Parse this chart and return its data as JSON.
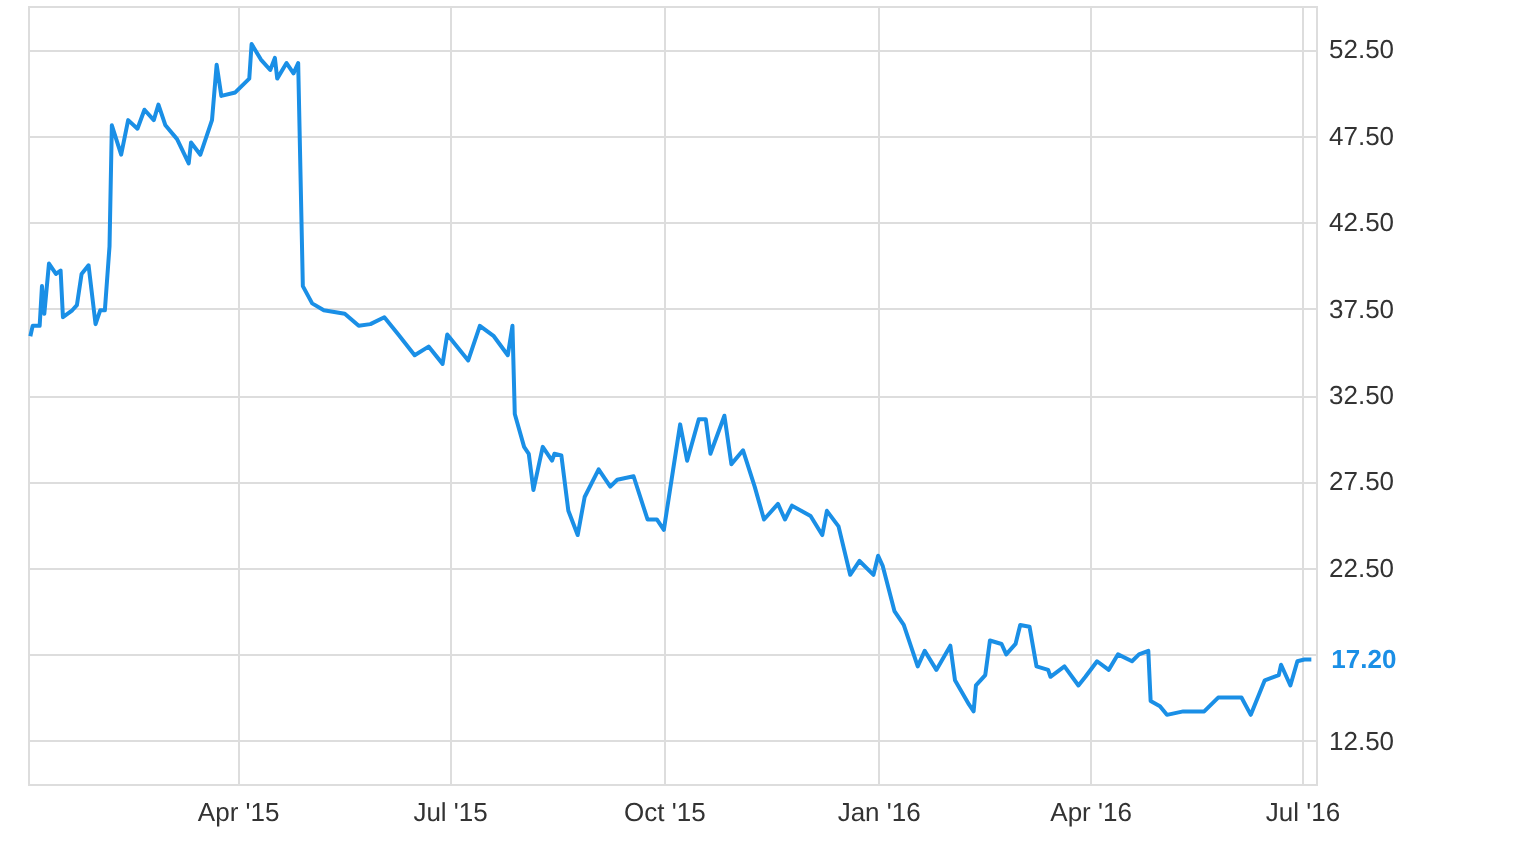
{
  "chart_data": {
    "type": "line",
    "x": [
      "2015-01-02",
      "2015-01-03",
      "2015-01-06",
      "2015-01-07",
      "2015-01-08",
      "2015-01-10",
      "2015-01-13",
      "2015-01-15",
      "2015-01-16",
      "2015-01-20",
      "2015-01-22",
      "2015-01-24",
      "2015-01-27",
      "2015-01-30",
      "2015-02-01",
      "2015-02-03",
      "2015-02-05",
      "2015-02-06",
      "2015-02-10",
      "2015-02-13",
      "2015-02-17",
      "2015-02-20",
      "2015-02-24",
      "2015-02-26",
      "2015-03-01",
      "2015-03-06",
      "2015-03-11",
      "2015-03-12",
      "2015-03-16",
      "2015-03-21",
      "2015-03-23",
      "2015-03-25",
      "2015-03-31",
      "2015-04-06",
      "2015-04-07",
      "2015-04-11",
      "2015-04-15",
      "2015-04-17",
      "2015-04-18",
      "2015-04-22",
      "2015-04-25",
      "2015-04-27",
      "2015-04-29",
      "2015-05-03",
      "2015-05-08",
      "2015-05-17",
      "2015-05-23",
      "2015-05-28",
      "2015-06-03",
      "2015-06-09",
      "2015-06-16",
      "2015-06-22",
      "2015-06-28",
      "2015-06-30",
      "2015-07-09",
      "2015-07-14",
      "2015-07-20",
      "2015-07-26",
      "2015-07-28",
      "2015-07-29",
      "2015-08-02",
      "2015-08-04",
      "2015-08-06",
      "2015-08-10",
      "2015-08-14",
      "2015-08-15",
      "2015-08-18",
      "2015-08-21",
      "2015-08-25",
      "2015-08-28",
      "2015-09-03",
      "2015-09-08",
      "2015-09-11",
      "2015-09-18",
      "2015-09-24",
      "2015-09-28",
      "2015-10-01",
      "2015-10-05",
      "2015-10-08",
      "2015-10-11",
      "2015-10-16",
      "2015-10-19",
      "2015-10-21",
      "2015-10-27",
      "2015-10-30",
      "2015-11-04",
      "2015-11-09",
      "2015-11-13",
      "2015-11-19",
      "2015-11-22",
      "2015-11-25",
      "2015-12-03",
      "2015-12-08",
      "2015-12-10",
      "2015-12-15",
      "2015-12-20",
      "2015-12-24",
      "2015-12-30",
      "2016-01-01",
      "2016-01-03",
      "2016-01-08",
      "2016-01-12",
      "2016-01-18",
      "2016-01-21",
      "2016-01-26",
      "2016-02-01",
      "2016-02-03",
      "2016-02-09",
      "2016-02-11",
      "2016-02-12",
      "2016-02-16",
      "2016-02-18",
      "2016-02-23",
      "2016-02-25",
      "2016-02-29",
      "2016-03-02",
      "2016-03-06",
      "2016-03-09",
      "2016-03-14",
      "2016-03-15",
      "2016-03-21",
      "2016-03-27",
      "2016-03-30",
      "2016-04-04",
      "2016-04-09",
      "2016-04-13",
      "2016-04-19",
      "2016-04-22",
      "2016-04-26",
      "2016-04-27",
      "2016-05-01",
      "2016-05-04",
      "2016-05-11",
      "2016-05-20",
      "2016-05-26",
      "2016-06-05",
      "2016-06-09",
      "2016-06-15",
      "2016-06-21",
      "2016-06-22",
      "2016-06-26",
      "2016-06-29",
      "2016-07-02",
      "2016-07-05"
    ],
    "series": [
      {
        "color": "#1a8fe6",
        "values": [
          35.9,
          36.5,
          36.5,
          38.8,
          37.2,
          40.1,
          39.5,
          39.7,
          37.0,
          37.4,
          37.7,
          39.5,
          40.0,
          36.6,
          37.4,
          37.4,
          41.1,
          48.1,
          46.4,
          48.4,
          47.9,
          49.0,
          48.4,
          49.3,
          48.1,
          47.3,
          45.9,
          47.1,
          46.4,
          48.4,
          51.6,
          49.8,
          50.0,
          50.8,
          52.8,
          51.9,
          51.3,
          52.0,
          50.8,
          51.7,
          51.1,
          51.7,
          38.8,
          37.8,
          37.4,
          37.2,
          36.5,
          36.6,
          37.0,
          36.0,
          34.8,
          35.3,
          34.3,
          36.0,
          34.5,
          36.5,
          35.9,
          34.8,
          36.5,
          31.4,
          29.5,
          29.1,
          27.0,
          29.5,
          28.7,
          29.1,
          29.0,
          25.8,
          24.4,
          26.6,
          28.2,
          27.2,
          27.6,
          27.8,
          25.3,
          25.3,
          24.7,
          28.2,
          30.8,
          28.7,
          31.1,
          31.1,
          29.1,
          31.3,
          28.5,
          29.3,
          27.2,
          25.3,
          26.2,
          25.3,
          26.1,
          25.5,
          24.4,
          25.8,
          24.9,
          22.1,
          22.9,
          22.1,
          23.2,
          22.6,
          20.0,
          19.2,
          16.8,
          17.7,
          16.6,
          18.0,
          16.0,
          14.6,
          14.2,
          15.7,
          16.3,
          18.3,
          18.1,
          17.5,
          18.1,
          19.2,
          19.1,
          16.8,
          16.6,
          16.2,
          16.8,
          15.7,
          16.2,
          17.1,
          16.6,
          17.5,
          17.1,
          17.5,
          17.7,
          14.8,
          14.5,
          14.0,
          14.2,
          14.2,
          15.0,
          15.0,
          14.0,
          16.0,
          16.3,
          16.9,
          15.7,
          17.1,
          17.2,
          17.2
        ]
      }
    ],
    "xlim": [
      "2015-01-01",
      "2016-07-07"
    ],
    "xticks": [
      {
        "value": "2015-04-01",
        "label": "Apr '15"
      },
      {
        "value": "2015-07-01",
        "label": "Jul '15"
      },
      {
        "value": "2015-10-01",
        "label": "Oct '15"
      },
      {
        "value": "2016-01-01",
        "label": "Jan '16"
      },
      {
        "value": "2016-04-01",
        "label": "Apr '16"
      },
      {
        "value": "2016-07-01",
        "label": "Jul '16"
      }
    ],
    "ylim": [
      10,
      55
    ],
    "yticks": [
      {
        "value": 12.5,
        "label": "12.50"
      },
      {
        "value": 22.5,
        "label": "22.50"
      },
      {
        "value": 27.5,
        "label": "27.50"
      },
      {
        "value": 32.5,
        "label": "32.50"
      },
      {
        "value": 37.5,
        "label": "37.50"
      },
      {
        "value": 42.5,
        "label": "42.50"
      },
      {
        "value": 47.5,
        "label": "47.50"
      },
      {
        "value": 52.5,
        "label": "52.50"
      },
      {
        "value": 17.5,
        "label": null
      }
    ],
    "annotations": [
      {
        "text": "17.20",
        "x": "2016-07-05",
        "y": 17.2
      }
    ],
    "grid": true,
    "marker": "none",
    "line_style": "solid"
  }
}
